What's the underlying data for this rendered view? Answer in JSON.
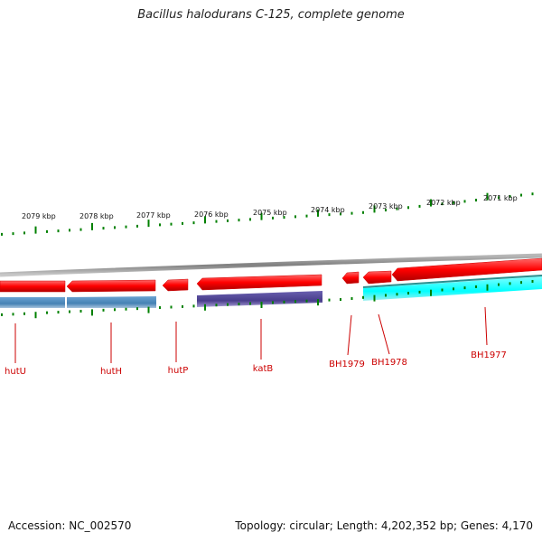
{
  "title": "Bacillus halodurans C-125, complete genome",
  "scale_labels": [
    "2079 kbp",
    "2078 kbp",
    "2077 kbp",
    "2076 kbp",
    "2075 kbp",
    "2074 kbp",
    "2073 kbp",
    "2072 kbp",
    "2071 kbp"
  ],
  "genes": [
    {
      "name": "hutU",
      "strand": "reverse",
      "color": "#ff0000"
    },
    {
      "name": "hutH",
      "strand": "reverse",
      "color": "#ff0000"
    },
    {
      "name": "hutP",
      "strand": "reverse",
      "color": "#ff0000"
    },
    {
      "name": "katB",
      "strand": "reverse",
      "color": "#ff0000"
    },
    {
      "name": "BH1979",
      "strand": "reverse",
      "color": "#ff0000"
    },
    {
      "name": "BH1978",
      "strand": "reverse",
      "color": "#ff0000"
    },
    {
      "name": "BH1977",
      "strand": "reverse",
      "color": "#ff0000"
    }
  ],
  "feature_colors": {
    "gene": "#ff0000",
    "steelblue": "#4682b4",
    "slateblue": "#483d8b",
    "cyan": "#00ffff",
    "backbone": "#808080",
    "ticks": "#008000",
    "labels": "#cc0000"
  },
  "footer": {
    "accession": "Accession: NC_002570",
    "summary": "Topology: circular; Length: 4,202,352 bp; Genes: 4,170"
  }
}
